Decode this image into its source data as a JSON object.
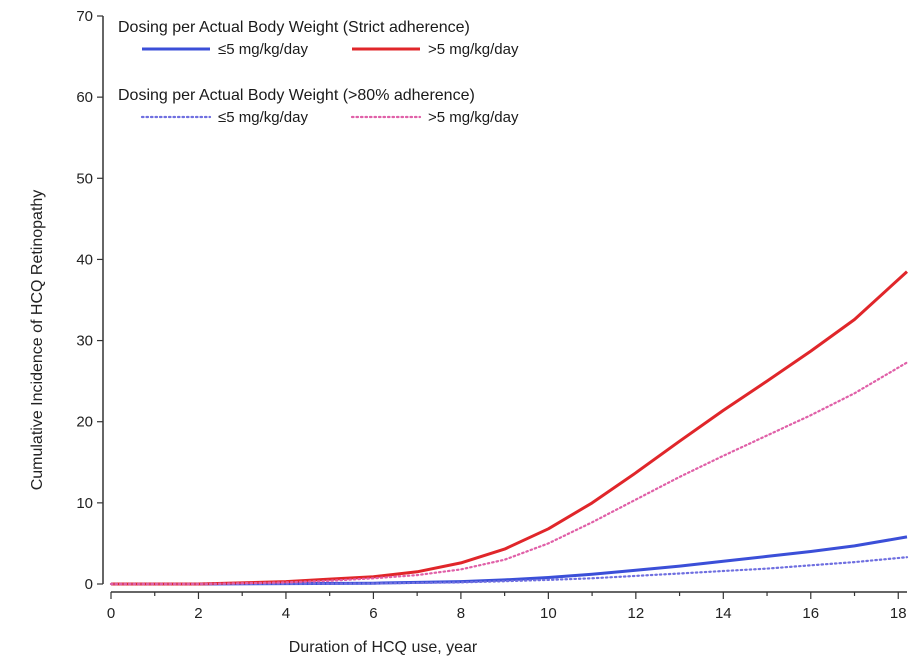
{
  "chart_data": {
    "type": "line",
    "title": "",
    "xlabel": "Duration of HCQ use, year",
    "ylabel": "Cumulative Incidence of HCQ Retinopathy",
    "xlim": [
      0,
      18.2
    ],
    "ylim": [
      0,
      70
    ],
    "xticks": [
      0,
      2,
      4,
      6,
      8,
      10,
      12,
      14,
      16,
      18
    ],
    "yticks": [
      0,
      10,
      20,
      30,
      40,
      50,
      60,
      70
    ],
    "grid": false,
    "legend_position": "top-left",
    "legend_groups": [
      {
        "title": "Dosing per Actual Body Weight (Strict adherence)",
        "series_indices": [
          0,
          1
        ]
      },
      {
        "title": "Dosing per Actual Body Weight (>80% adherence)",
        "series_indices": [
          2,
          3
        ]
      }
    ],
    "series": [
      {
        "name": "≤5 mg/kg/day",
        "color": "#3b4fd8",
        "style": "solid",
        "x": [
          0,
          2,
          4,
          6,
          7,
          8,
          9,
          10,
          11,
          12,
          13,
          14,
          15,
          16,
          17,
          18.2
        ],
        "y": [
          0,
          0,
          0.05,
          0.1,
          0.2,
          0.3,
          0.5,
          0.8,
          1.2,
          1.7,
          2.2,
          2.8,
          3.4,
          4.0,
          4.7,
          5.8
        ]
      },
      {
        "name": ">5 mg/kg/day",
        "color": "#e0262a",
        "style": "solid",
        "x": [
          0,
          2,
          4,
          5,
          6,
          7,
          8,
          9,
          10,
          11,
          12,
          13,
          14,
          15,
          16,
          17,
          18.2
        ],
        "y": [
          0,
          0,
          0.3,
          0.6,
          0.9,
          1.5,
          2.6,
          4.3,
          6.8,
          10.0,
          13.7,
          17.6,
          21.4,
          25.0,
          28.7,
          32.6,
          38.5
        ]
      },
      {
        "name": "≤5 mg/kg/day",
        "color": "#6f6fe0",
        "style": "dotted",
        "x": [
          0,
          2,
          4,
          6,
          8,
          9,
          10,
          11,
          12,
          13,
          14,
          15,
          16,
          17,
          18.2
        ],
        "y": [
          0,
          0,
          0.03,
          0.07,
          0.2,
          0.35,
          0.5,
          0.7,
          1.0,
          1.3,
          1.6,
          1.9,
          2.3,
          2.7,
          3.3
        ]
      },
      {
        "name": ">5 mg/kg/day",
        "color": "#e060a8",
        "style": "dotted",
        "x": [
          0,
          2,
          4,
          5,
          6,
          7,
          8,
          9,
          10,
          11,
          12,
          13,
          14,
          15,
          16,
          17,
          18.2
        ],
        "y": [
          0,
          0,
          0.2,
          0.4,
          0.7,
          1.1,
          1.8,
          3.0,
          5.0,
          7.6,
          10.4,
          13.2,
          15.8,
          18.3,
          20.8,
          23.5,
          27.3
        ]
      }
    ]
  }
}
